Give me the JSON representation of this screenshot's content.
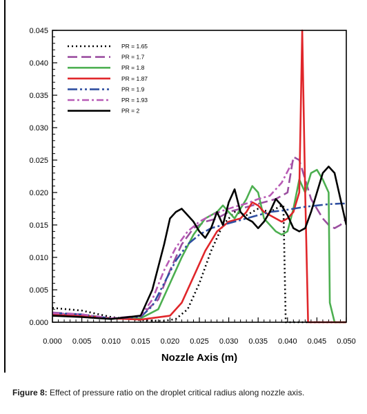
{
  "chart_data": {
    "type": "line",
    "title": "",
    "xlabel": "Nozzle Axis (m)",
    "ylabel": "",
    "xlim": [
      0,
      0.05
    ],
    "ylim": [
      0,
      0.045
    ],
    "xticks": [
      "0.000",
      "0.005",
      "0.010",
      "0.015",
      "0.020",
      "0.025",
      "0.030",
      "0.035",
      "0.040",
      "0.045",
      "0.050"
    ],
    "yticks": [
      "0.000",
      "0.005",
      "0.010",
      "0.015",
      "0.020",
      "0.025",
      "0.030",
      "0.035",
      "0.040",
      "0.045"
    ],
    "grid": false,
    "legend_position": "top-left",
    "series": [
      {
        "name": "PR = 1.65",
        "color": "#000000",
        "dash": "2,4",
        "x": [
          0,
          0.005,
          0.01,
          0.015,
          0.019,
          0.021,
          0.023,
          0.025,
          0.027,
          0.029,
          0.031,
          0.033,
          0.035,
          0.037,
          0.039,
          0.0393,
          0.0397,
          0.05
        ],
        "y": [
          0.0022,
          0.0018,
          0.0008,
          0.0003,
          0.0002,
          0.0005,
          0.002,
          0.006,
          0.011,
          0.015,
          0.017,
          0.0165,
          0.0175,
          0.017,
          0.018,
          0.018,
          0,
          0
        ]
      },
      {
        "name": "PR = 1.7",
        "color": "#9b4fa0",
        "dash": "14,6",
        "x": [
          0,
          0.005,
          0.01,
          0.015,
          0.018,
          0.02,
          0.022,
          0.024,
          0.026,
          0.028,
          0.03,
          0.032,
          0.034,
          0.036,
          0.038,
          0.04,
          0.041,
          0.042,
          0.043,
          0.044,
          0.045,
          0.046,
          0.047,
          0.048,
          0.049,
          0.05
        ],
        "y": [
          0.0015,
          0.0012,
          0.0006,
          0.001,
          0.0035,
          0.008,
          0.012,
          0.0145,
          0.0155,
          0.016,
          0.017,
          0.0175,
          0.018,
          0.0185,
          0.019,
          0.02,
          0.0255,
          0.025,
          0.022,
          0.019,
          0.0175,
          0.016,
          0.015,
          0.0145,
          0.015,
          0.016
        ]
      },
      {
        "name": "PR = 1.8",
        "color": "#4caf50",
        "dash": "",
        "x": [
          0,
          0.005,
          0.01,
          0.015,
          0.018,
          0.02,
          0.022,
          0.024,
          0.026,
          0.028,
          0.029,
          0.03,
          0.031,
          0.032,
          0.033,
          0.034,
          0.035,
          0.036,
          0.037,
          0.038,
          0.039,
          0.04,
          0.041,
          0.042,
          0.043,
          0.044,
          0.045,
          0.046,
          0.047,
          0.0472,
          0.048,
          0.05
        ],
        "y": [
          0.0013,
          0.0011,
          0.0006,
          0.0006,
          0.002,
          0.006,
          0.01,
          0.0135,
          0.016,
          0.017,
          0.018,
          0.017,
          0.016,
          0.0175,
          0.019,
          0.021,
          0.02,
          0.016,
          0.015,
          0.014,
          0.0135,
          0.014,
          0.0175,
          0.022,
          0.02,
          0.023,
          0.0235,
          0.022,
          0.02,
          0.003,
          0,
          0
        ]
      },
      {
        "name": "PR = 1.87",
        "color": "#e0262a",
        "dash": "",
        "x": [
          0,
          0.005,
          0.01,
          0.015,
          0.02,
          0.022,
          0.024,
          0.026,
          0.028,
          0.03,
          0.032,
          0.033,
          0.034,
          0.035,
          0.036,
          0.037,
          0.038,
          0.039,
          0.04,
          0.041,
          0.042,
          0.0425,
          0.043,
          0.0435,
          0.05
        ],
        "y": [
          0.0012,
          0.001,
          0.0006,
          0.0004,
          0.001,
          0.003,
          0.007,
          0.011,
          0.014,
          0.0155,
          0.016,
          0.017,
          0.0185,
          0.018,
          0.017,
          0.0165,
          0.016,
          0.0155,
          0.016,
          0.017,
          0.02,
          0.045,
          0.02,
          0,
          0
        ]
      },
      {
        "name": "PR = 1.9",
        "color": "#2f4fa0",
        "dash": "14,4,3,4,3,4",
        "x": [
          0,
          0.005,
          0.01,
          0.015,
          0.017,
          0.019,
          0.021,
          0.023,
          0.025,
          0.027,
          0.029,
          0.031,
          0.033,
          0.035,
          0.037,
          0.039,
          0.041,
          0.043,
          0.045,
          0.047,
          0.049,
          0.05
        ],
        "y": [
          0.0014,
          0.0012,
          0.0006,
          0.0008,
          0.0025,
          0.006,
          0.0095,
          0.012,
          0.0135,
          0.0145,
          0.015,
          0.0155,
          0.016,
          0.0165,
          0.017,
          0.0172,
          0.0175,
          0.0178,
          0.018,
          0.0182,
          0.0183,
          0.0183
        ]
      },
      {
        "name": "PR = 1.93",
        "color": "#b85ab5",
        "dash": "10,4,3,4",
        "x": [
          0,
          0.005,
          0.01,
          0.015,
          0.017,
          0.019,
          0.021,
          0.023,
          0.025,
          0.027,
          0.029,
          0.031,
          0.033,
          0.035,
          0.037,
          0.039,
          0.041
        ],
        "y": [
          0.0014,
          0.0012,
          0.0006,
          0.0009,
          0.0035,
          0.008,
          0.0115,
          0.014,
          0.0155,
          0.0165,
          0.0172,
          0.0178,
          0.0183,
          0.019,
          0.0195,
          0.0215,
          0.025
        ]
      },
      {
        "name": "PR = 2",
        "color": "#000000",
        "dash": "",
        "x": [
          0,
          0.005,
          0.01,
          0.015,
          0.017,
          0.019,
          0.02,
          0.021,
          0.022,
          0.023,
          0.024,
          0.025,
          0.026,
          0.027,
          0.028,
          0.029,
          0.03,
          0.031,
          0.032,
          0.033,
          0.034,
          0.035,
          0.036,
          0.037,
          0.038,
          0.039,
          0.04,
          0.041,
          0.042,
          0.043,
          0.044,
          0.045,
          0.046,
          0.047,
          0.048,
          0.049,
          0.05
        ],
        "y": [
          0.001,
          0.0008,
          0.0005,
          0.001,
          0.005,
          0.012,
          0.016,
          0.017,
          0.0175,
          0.0165,
          0.0155,
          0.014,
          0.013,
          0.0145,
          0.017,
          0.015,
          0.0185,
          0.0205,
          0.017,
          0.016,
          0.0155,
          0.0145,
          0.0155,
          0.017,
          0.019,
          0.018,
          0.0165,
          0.0145,
          0.014,
          0.0145,
          0.017,
          0.02,
          0.023,
          0.024,
          0.023,
          0.019,
          0.015
        ]
      }
    ]
  },
  "caption": {
    "label": "Figure 8:",
    "text": " Effect of pressure ratio on the droplet critical radius along nozzle axis."
  }
}
